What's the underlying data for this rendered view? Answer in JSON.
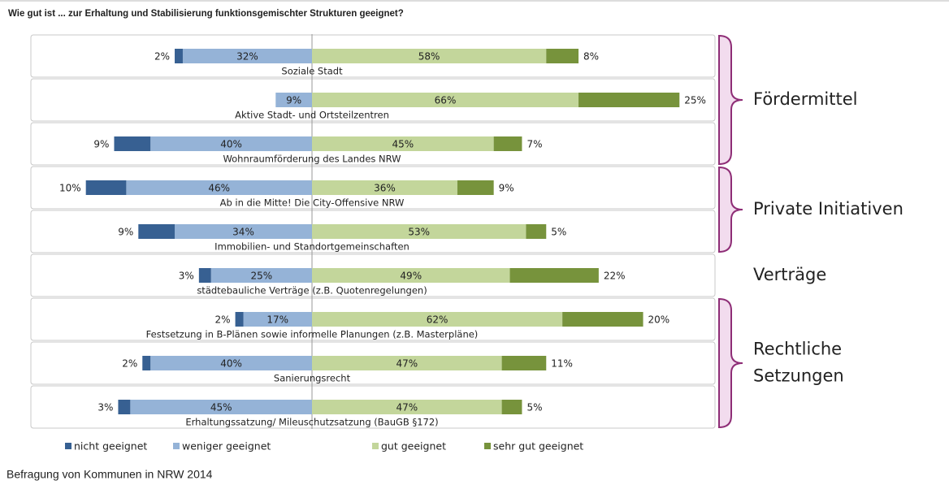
{
  "chart_data": {
    "type": "diverging-bar",
    "title": "Wie gut ist ... zur Erhaltung und Stabilisierung funktionsgemischter Strukturen geeignet?",
    "source": "Befragung von Kommunen in NRW 2014",
    "categories": [
      "Soziale Stadt",
      "Aktive Stadt- und Ortsteilzentren",
      "Wohnraumförderung des Landes NRW",
      "Ab in die Mitte! Die City-Offensive NRW",
      "Immobilien- und Standortgemeinschaften",
      "städtebauliche Verträge (z.B. Quotenregelungen)",
      "Festsetzung in B-Plänen sowie informelle Planungen (z.B. Masterpläne)",
      "Sanierungsrecht",
      "Erhaltungssatzung/ Mileuschutzsatzung (BauGB §172)"
    ],
    "series": [
      {
        "name": "nicht geeignet",
        "side": "left",
        "color": "#376092",
        "values": [
          2,
          null,
          9,
          10,
          9,
          3,
          2,
          2,
          3
        ],
        "value_labels": [
          "2%",
          null,
          "9%",
          "10%",
          "9%",
          "3%",
          "2%",
          "2%",
          "3%"
        ]
      },
      {
        "name": "weniger geeignet",
        "side": "left",
        "color": "#95b3d7",
        "values": [
          32,
          9,
          40,
          46,
          34,
          25,
          17,
          40,
          45
        ],
        "value_labels": [
          "32%",
          "9%",
          "40%",
          "46%",
          "34%",
          "25%",
          "17%",
          "40%",
          "45%"
        ]
      },
      {
        "name": "gut geeignet",
        "side": "right",
        "color": "#c3d69b",
        "values": [
          58,
          66,
          45,
          36,
          53,
          49,
          62,
          47,
          47
        ],
        "value_labels": [
          "58%",
          "66%",
          "45%",
          "36%",
          "53%",
          "49%",
          "62%",
          "47%",
          "47%"
        ]
      },
      {
        "name": "sehr gut geeignet",
        "side": "right",
        "color": "#77933c",
        "values": [
          8,
          25,
          7,
          9,
          5,
          22,
          20,
          11,
          5
        ],
        "value_labels": [
          "8%",
          "25%",
          "7%",
          "9%",
          "5%",
          "22%",
          "20%",
          "11%",
          "5%"
        ]
      }
    ],
    "groups": [
      {
        "lines": [
          "Fördermittel"
        ],
        "count": 3,
        "bracket": true
      },
      {
        "lines": [
          "Private Initiativen"
        ],
        "count": 2,
        "bracket": true
      },
      {
        "lines": [
          "Verträge"
        ],
        "count": 1,
        "bracket": false
      },
      {
        "lines": [
          "Rechtliche",
          "Setzungen"
        ],
        "count": 3,
        "bracket": true
      }
    ]
  }
}
